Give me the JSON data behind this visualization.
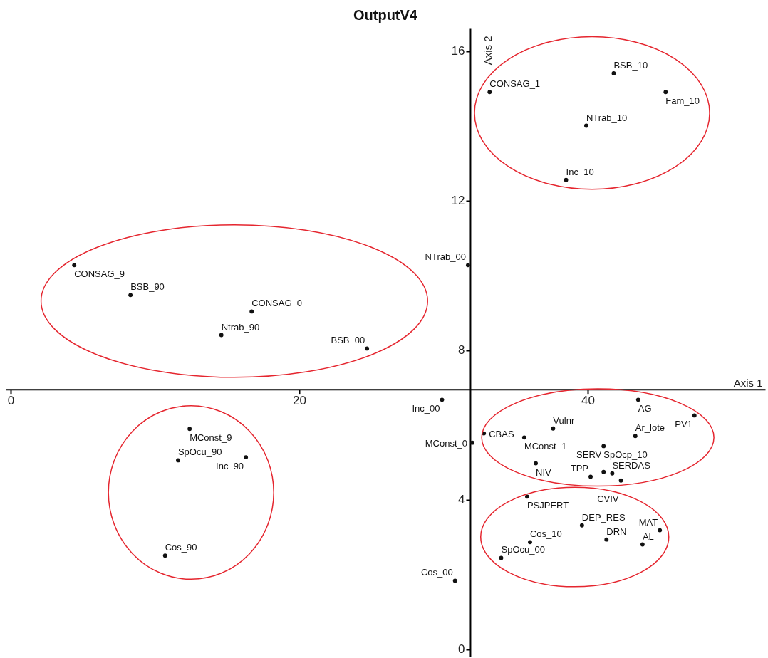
{
  "chart_data": {
    "type": "scatter",
    "title": "OutputV4",
    "xlabel": "Axis 1",
    "ylabel": "Axis 2",
    "marker": "circle",
    "grid": false,
    "xlim": [
      -0.35,
      52.3
    ],
    "ylim": [
      -0.2,
      16.6
    ],
    "xticks": [
      0,
      20,
      40
    ],
    "yticks": [
      0,
      4,
      8,
      12,
      16
    ],
    "series": [
      {
        "color": "#111111",
        "x": [
          33.2,
          41.8,
          45.4,
          39.9,
          38.5,
          31.7,
          4.4,
          8.3,
          16.7,
          14.6,
          24.7,
          29.9,
          43.5,
          47.4,
          32.8,
          32.0,
          35.6,
          37.6,
          43.3,
          41.1,
          36.4,
          40.2,
          41.1,
          41.7,
          42.3,
          35.8,
          39.6,
          36.0,
          41.3,
          43.8,
          45.0,
          34.0,
          30.8,
          12.4,
          11.6,
          16.3,
          10.7
        ],
        "values": [
          14.9,
          15.4,
          14.9,
          14.0,
          12.55,
          10.27,
          10.27,
          9.47,
          9.03,
          8.4,
          8.04,
          6.67,
          6.67,
          6.25,
          5.77,
          5.52,
          5.66,
          5.9,
          5.7,
          5.43,
          4.97,
          4.61,
          4.74,
          4.7,
          4.51,
          4.08,
          3.31,
          2.86,
          2.93,
          2.8,
          3.18,
          2.44,
          1.83,
          5.89,
          5.05,
          5.13,
          2.5
        ]
      }
    ],
    "annotations": [
      {
        "text": "CONSAG_1",
        "x": 33.2,
        "y": 14.9
      },
      {
        "text": "BSB_10",
        "x": 41.8,
        "y": 15.4
      },
      {
        "text": "Fam_10",
        "x": 45.4,
        "y": 14.9
      },
      {
        "text": "NTrab_10",
        "x": 39.9,
        "y": 14.0
      },
      {
        "text": "Inc_10",
        "x": 38.5,
        "y": 12.55
      },
      {
        "text": "NTrab_00",
        "x": 31.7,
        "y": 10.27
      },
      {
        "text": "CONSAG_9",
        "x": 4.4,
        "y": 10.27
      },
      {
        "text": "BSB_90",
        "x": 8.3,
        "y": 9.47
      },
      {
        "text": "CONSAG_0",
        "x": 16.7,
        "y": 9.03
      },
      {
        "text": "Ntrab_90",
        "x": 14.6,
        "y": 8.4
      },
      {
        "text": "BSB_00",
        "x": 24.7,
        "y": 8.04
      },
      {
        "text": "Inc_00",
        "x": 29.9,
        "y": 6.67
      },
      {
        "text": "AG",
        "x": 43.5,
        "y": 6.67
      },
      {
        "text": "PV1",
        "x": 47.4,
        "y": 6.25
      },
      {
        "text": "CBAS",
        "x": 32.8,
        "y": 5.77
      },
      {
        "text": "MConst_0",
        "x": 32.0,
        "y": 5.52
      },
      {
        "text": "MConst_1",
        "x": 35.6,
        "y": 5.66
      },
      {
        "text": "Vulnr",
        "x": 37.6,
        "y": 5.9
      },
      {
        "text": "Ar_lote",
        "x": 43.3,
        "y": 5.7
      },
      {
        "text": "SpOcp_10",
        "x": 41.1,
        "y": 5.43
      },
      {
        "text": "NIV",
        "x": 36.4,
        "y": 4.97
      },
      {
        "text": "TPP",
        "x": 40.2,
        "y": 4.61
      },
      {
        "text": "SERV",
        "x": 41.1,
        "y": 4.74
      },
      {
        "text": "SERDAS",
        "x": 41.7,
        "y": 4.7
      },
      {
        "text": "CVIV",
        "x": 42.3,
        "y": 4.51
      },
      {
        "text": "PSJPERT",
        "x": 35.8,
        "y": 4.08
      },
      {
        "text": "DEP_RES",
        "x": 39.6,
        "y": 3.31
      },
      {
        "text": "Cos_10",
        "x": 36.0,
        "y": 2.86
      },
      {
        "text": "DRN",
        "x": 41.3,
        "y": 2.93
      },
      {
        "text": "AL",
        "x": 43.8,
        "y": 2.8
      },
      {
        "text": "MAT",
        "x": 45.0,
        "y": 3.18
      },
      {
        "text": "SpOcu_00",
        "x": 34.0,
        "y": 2.44
      },
      {
        "text": "Cos_00",
        "x": 30.8,
        "y": 1.83
      },
      {
        "text": "MConst_9",
        "x": 12.4,
        "y": 5.89
      },
      {
        "text": "SpOcu_90",
        "x": 11.6,
        "y": 5.05
      },
      {
        "text": "Inc_90",
        "x": 16.3,
        "y": 5.13
      },
      {
        "text": "Cos_90",
        "x": 10.7,
        "y": 2.5
      }
    ]
  }
}
